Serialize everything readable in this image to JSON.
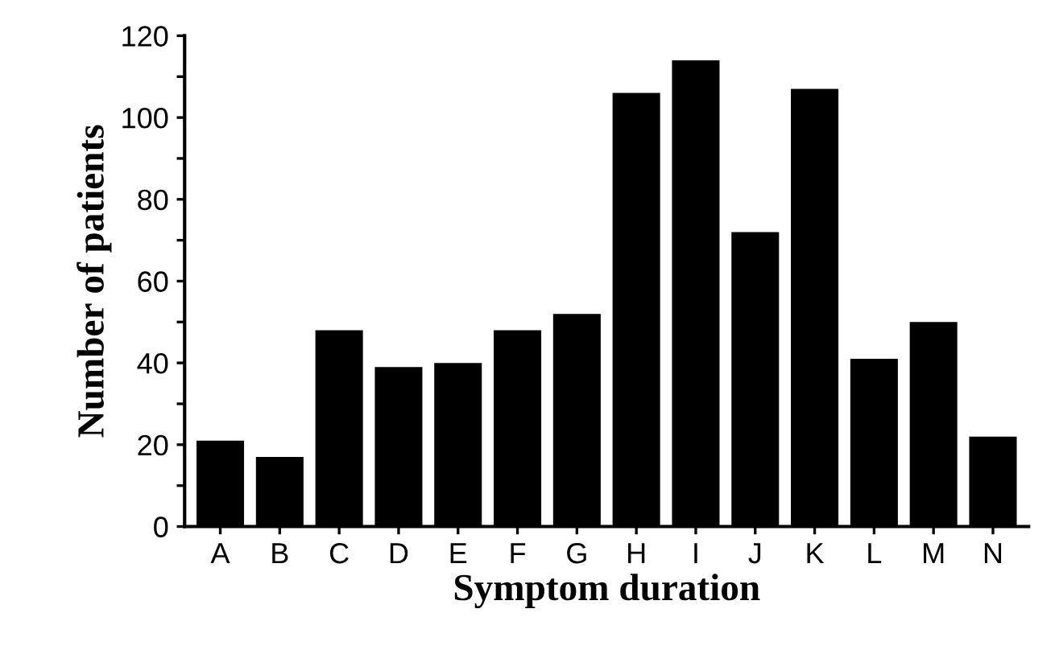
{
  "chart_data": {
    "type": "bar",
    "xlabel": "Symptom duration",
    "ylabel": "Number of patients",
    "categories": [
      "A",
      "B",
      "C",
      "D",
      "E",
      "F",
      "G",
      "H",
      "I",
      "J",
      "K",
      "L",
      "M",
      "N"
    ],
    "values": [
      21,
      17,
      48,
      39,
      40,
      48,
      52,
      106,
      114,
      72,
      107,
      41,
      50,
      22
    ],
    "color": "#000000",
    "ylim": [
      0,
      120
    ],
    "yticks": [
      0,
      {
        "value": 10,
        "label": null
      },
      20,
      {
        "value": 30,
        "label": null
      },
      40,
      {
        "value": 50,
        "label": null
      },
      60,
      {
        "value": 70,
        "label": null
      },
      80,
      {
        "value": 90,
        "label": null
      },
      100,
      {
        "value": 110,
        "label": null
      },
      120
    ],
    "grid": false
  }
}
